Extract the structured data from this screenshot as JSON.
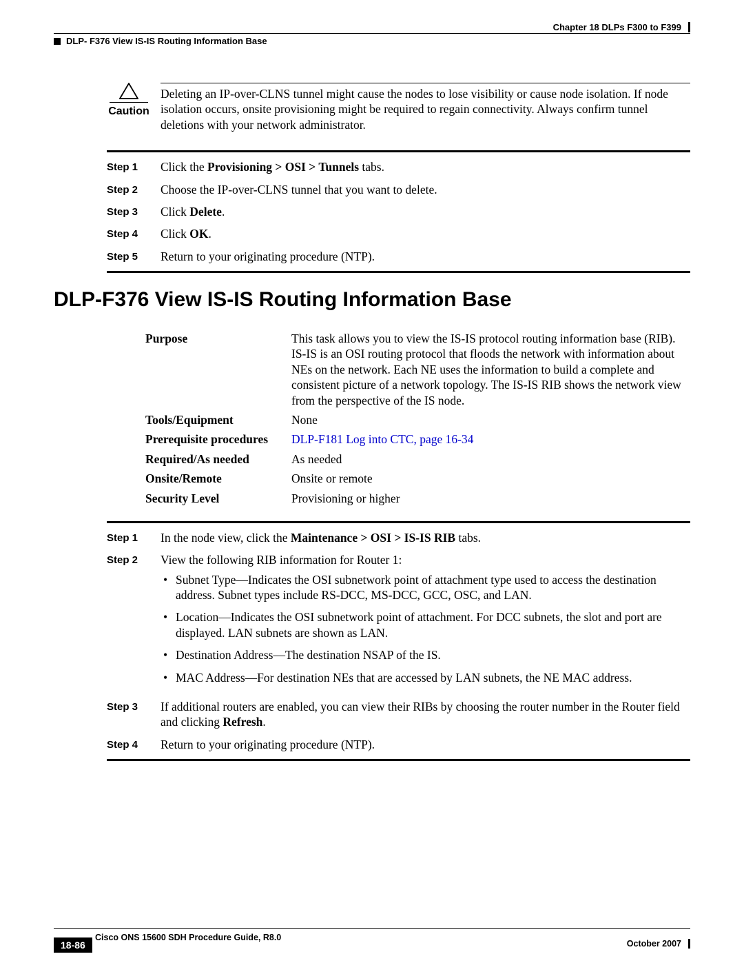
{
  "runhead": {
    "chapter": "Chapter 18 DLPs F300 to F399",
    "section": "DLP- F376 View IS-IS Routing Information Base"
  },
  "caution": {
    "label": "Caution",
    "text": "Deleting an IP-over-CLNS tunnel might cause the nodes to lose visibility or cause node isolation. If node isolation occurs, onsite provisioning might be required to regain connectivity. Always confirm tunnel deletions with your network administrator."
  },
  "stepsA": [
    {
      "label": "Step 1",
      "pre": "Click the ",
      "bold": "Provisioning > OSI > Tunnels",
      "post": " tabs."
    },
    {
      "label": "Step 2",
      "pre": "Choose the IP-over-CLNS tunnel that you want to delete.",
      "bold": "",
      "post": ""
    },
    {
      "label": "Step 3",
      "pre": "Click ",
      "bold": "Delete",
      "post": "."
    },
    {
      "label": "Step 4",
      "pre": "Click ",
      "bold": "OK",
      "post": "."
    },
    {
      "label": "Step 5",
      "pre": "Return to your originating procedure (NTP).",
      "bold": "",
      "post": ""
    }
  ],
  "heading": "DLP-F376 View IS-IS Routing Information Base",
  "ptable": {
    "purpose_label": "Purpose",
    "purpose": "This task allows you to view the IS-IS protocol routing information base (RIB). IS-IS is an OSI routing protocol that floods the network with information about NEs on the network. Each NE uses the information to build a complete and consistent picture of a network topology. The IS-IS RIB shows the network view from the perspective of the IS node.",
    "tools_label": "Tools/Equipment",
    "tools": "None",
    "prereq_label": "Prerequisite procedures",
    "prereq_link": "DLP-F181 Log into CTC, page 16-34",
    "required_label": "Required/As needed",
    "required": "As needed",
    "onsite_label": "Onsite/Remote",
    "onsite": "Onsite or remote",
    "security_label": "Security Level",
    "security": "Provisioning or higher"
  },
  "stepsB": {
    "s1": {
      "label": "Step 1",
      "pre": "In the node view, click the ",
      "bold": "Maintenance > OSI > IS-IS RIB",
      "post": " tabs."
    },
    "s2": {
      "label": "Step 2",
      "text": "View the following RIB information for Router 1:",
      "bullets": [
        "Subnet Type—Indicates the OSI subnetwork point of attachment type used to access the destination address. Subnet types include RS-DCC, MS-DCC, GCC, OSC, and LAN.",
        "Location—Indicates the OSI subnetwork point of attachment. For DCC subnets, the slot and port are displayed. LAN subnets are shown as LAN.",
        "Destination Address—The destination NSAP of the IS.",
        "MAC Address—For destination NEs that are accessed by LAN subnets, the NE MAC address."
      ]
    },
    "s3": {
      "label": "Step 3",
      "pre": "If additional routers are enabled, you can view their RIBs by choosing the router number in the Router field and clicking ",
      "bold": "Refresh",
      "post": "."
    },
    "s4": {
      "label": "Step 4",
      "text": "Return to your originating procedure (NTP)."
    }
  },
  "footer": {
    "guide": "Cisco ONS 15600 SDH Procedure Guide, R8.0",
    "page": "18-86",
    "date": "October 2007"
  },
  "colors": {
    "text": "#000000",
    "link": "#0000cc",
    "bg": "#ffffff"
  }
}
